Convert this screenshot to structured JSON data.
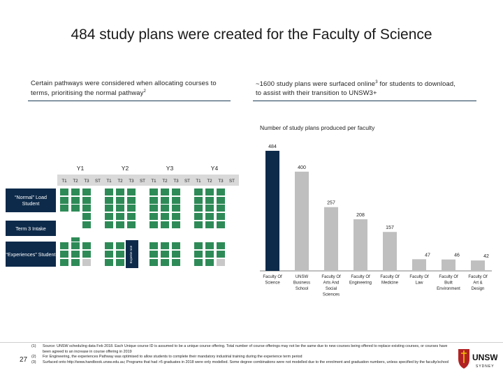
{
  "title": "484 study plans were created for the Faculty of Science",
  "left_column": {
    "text": "Certain pathways were considered when allocating courses to terms, prioritising the normal pathway",
    "sup": "2"
  },
  "right_column": {
    "text": "~1600 study plans were surfaced online",
    "sup": "3",
    "text2": " for students to download, to assist with their transition to UNSW3+"
  },
  "grid": {
    "years": [
      "Y1",
      "Y2",
      "Y3",
      "Y4"
    ],
    "terms": [
      "T1",
      "T2",
      "T3",
      "ST"
    ],
    "rows": [
      {
        "label": "“Normal” Load Student"
      },
      {
        "label": "Term 3 Intake"
      },
      {
        "label": "“Experiences” Student"
      }
    ],
    "experience_label": "Experie nce",
    "colors": {
      "green": "#2e8b57",
      "grey": "#c8c8c8",
      "navy": "#0d2a4a",
      "header": "#d9d9d9"
    }
  },
  "chart_data": {
    "type": "bar",
    "title": "Number of study plans produced per faculty",
    "categories": [
      "Faculty Of Science",
      "UNSW Business School",
      "Faculty Of Arts And Social Sciences",
      "Faculty Of Engineering",
      "Faculty Of Medicine",
      "Faculty Of Law",
      "Faculty Of Built Environment",
      "Faculty Of Art & Design"
    ],
    "values": [
      484,
      400,
      257,
      208,
      157,
      47,
      46,
      42
    ],
    "ylim": [
      0,
      484
    ],
    "colors": {
      "highlight": "#0d2a4a",
      "other": "#bfbfbf"
    }
  },
  "footnotes": [
    {
      "num": "(1)",
      "text": "Source: UNSW scheduling data Feb 2018. Each Unique course ID is assumed to be a unique course offering. Total number of course offerings may not be the same due to new courses being offered to replace existing courses, or courses have been agreed to an increase in course offering in 2019"
    },
    {
      "num": "(2)",
      "text": "For Engineering, the experiences Pathway was optimised to allow students to complete their mandatory industrial training during the experience term period"
    },
    {
      "num": "(3)",
      "text": "Surfaced onto http://www.handbook.unsw.edu.au; Programs that had >5 graduates in 2018 were only modelled. Some degree combinations were not modelled due to the enrolment and graduation numbers, unless specified by the faculty/school"
    }
  ],
  "page_number": "27",
  "logo": {
    "name": "UNSW",
    "sub": "SYDNEY"
  }
}
